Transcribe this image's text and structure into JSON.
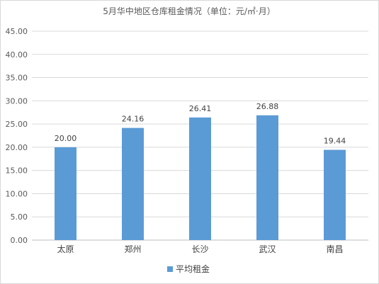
{
  "chart_data": {
    "type": "bar",
    "title": "5月华中地区仓库租金情况（单位：元/㎡·月）",
    "categories": [
      "太原",
      "郑州",
      "长沙",
      "武汉",
      "南昌"
    ],
    "series": [
      {
        "name": "平均租金",
        "values": [
          20.0,
          24.16,
          26.41,
          26.88,
          19.44
        ],
        "color": "#5b9bd5"
      }
    ],
    "data_labels": [
      "20.00",
      "24.16",
      "26.41",
      "26.88",
      "19.44"
    ],
    "ylim": [
      0,
      45
    ],
    "ytick_labels": [
      "0.00",
      "5.00",
      "10.00",
      "15.00",
      "20.00",
      "25.00",
      "30.00",
      "35.00",
      "40.00",
      "45.00"
    ],
    "ytick_values": [
      0,
      5,
      10,
      15,
      20,
      25,
      30,
      35,
      40,
      45
    ],
    "grid": true,
    "legend_position": "bottom",
    "xlabel": "",
    "ylabel": ""
  }
}
